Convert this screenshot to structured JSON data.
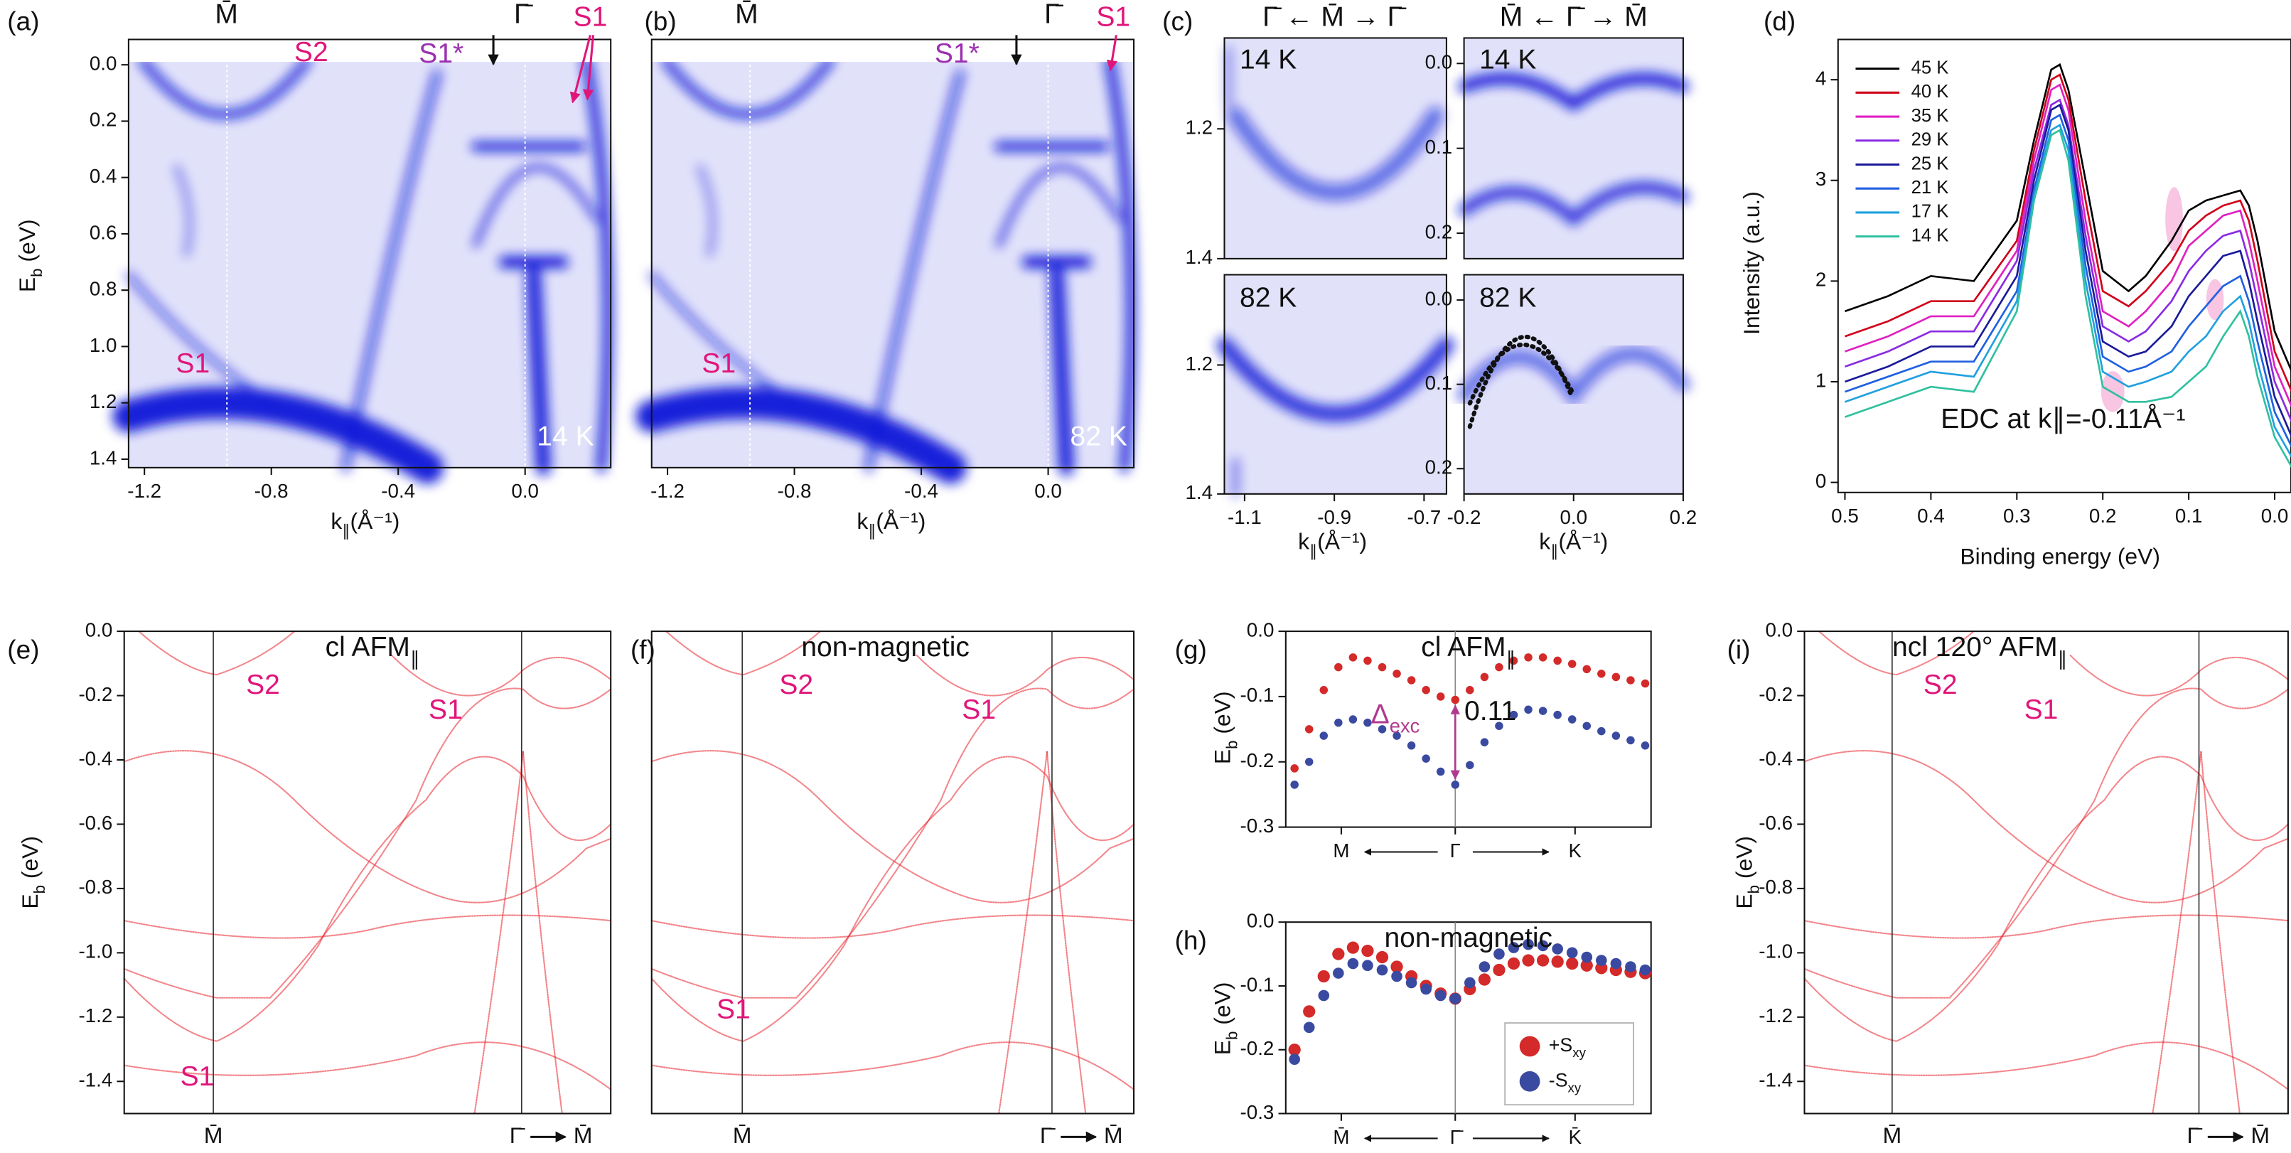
{
  "chart_data": [
    {
      "type": "image",
      "panel": "(a)",
      "color": "#0a14d8",
      "xlabel": {
        "text": "k",
        "sub": "∥",
        "tail": "(Å⁻¹)"
      },
      "ylabel": {
        "text": "E",
        "sub": "b",
        "tail": " (eV)"
      },
      "xlim": [
        -1.25,
        0.27
      ],
      "ylim": [
        1.43,
        -0.09
      ],
      "xticks": [
        -1.2,
        -0.8,
        -0.4,
        {
          "value": 0,
          "label": "0.0"
        }
      ],
      "yticks": [
        {
          "value": 0,
          "label": "0.0"
        },
        0.2,
        0.4,
        0.6,
        0.8,
        {
          "value": 1,
          "label": "1.0"
        },
        1.2,
        1.4
      ],
      "annotations": [
        {
          "text": "M̄",
          "color": "#111111"
        },
        {
          "text": "Γ̄",
          "color": "#111111"
        },
        {
          "text": "S2",
          "color": "#e0157a"
        },
        {
          "text": "S1*",
          "color": "#9b30b0"
        },
        {
          "text": "S1",
          "color": "#e0157a"
        },
        {
          "text": "S1",
          "color": "#e0157a"
        },
        {
          "text": "14 K",
          "color": "#ffffff"
        }
      ]
    },
    {
      "type": "image",
      "panel": "(b)",
      "color": "#0a14d8",
      "xlabel": {
        "text": "k",
        "sub": "∥",
        "tail": "(Å⁻¹)"
      },
      "xlim": [
        -1.25,
        0.27
      ],
      "ylim": [
        1.43,
        -0.09
      ],
      "xticks": [
        -1.2,
        -0.8,
        -0.4,
        {
          "value": 0,
          "label": "0.0"
        }
      ],
      "annotations": [
        {
          "text": "M̄",
          "color": "#111111"
        },
        {
          "text": "Γ̄",
          "color": "#111111"
        },
        {
          "text": "S1*",
          "color": "#9b30b0"
        },
        {
          "text": "S1",
          "color": "#e0157a"
        },
        {
          "text": "S1",
          "color": "#e0157a"
        },
        {
          "text": "82 K",
          "color": "#ffffff"
        }
      ]
    },
    {
      "type": "image",
      "panel": "(c)",
      "color": "#0a14d8",
      "xlim": [
        -1.145,
        -0.65
      ],
      "ylim": [
        1.4,
        1.06
      ],
      "yticks": [
        1.2,
        1.4
      ],
      "annotations": [
        {
          "text": "Γ̄ ← M̄ → Γ̄",
          "color": "#111111"
        },
        {
          "text": "14 K",
          "color": "#111111"
        }
      ]
    },
    {
      "type": "image",
      "color": "#0a14d8",
      "xlim": [
        -0.2,
        0.2
      ],
      "ylim": [
        0.23,
        -0.03
      ],
      "yticks": [
        {
          "value": 0,
          "label": "0.0"
        },
        0.1,
        0.2
      ],
      "annotations": [
        {
          "text": "M̄ ← Γ̄ → M̄",
          "color": "#111111"
        },
        {
          "text": "14 K",
          "color": "#111111"
        }
      ]
    },
    {
      "type": "image",
      "color": "#0a14d8",
      "xlabel": {
        "text": "k",
        "sub": "∥",
        "tail": "(Å⁻¹)"
      },
      "xlim": [
        -1.145,
        -0.65
      ],
      "ylim": [
        1.4,
        1.06
      ],
      "xticks": [
        -1.1,
        -0.9,
        -0.7
      ],
      "yticks": [
        1.2,
        1.4
      ],
      "annotations": [
        {
          "text": "82 K",
          "color": "#111111"
        }
      ]
    },
    {
      "type": "image",
      "color": "#0a14d8",
      "xlabel": {
        "text": "k",
        "sub": "∥",
        "tail": "(Å⁻¹)"
      },
      "xlim": [
        -0.2,
        0.2
      ],
      "ylim": [
        0.23,
        -0.03
      ],
      "xticks": [
        -0.2,
        {
          "value": 0,
          "label": "0.0"
        },
        0.2
      ],
      "yticks": [
        {
          "value": 0,
          "label": "0.0"
        },
        0.1,
        0.2
      ],
      "annotations": [
        {
          "text": "82 K",
          "color": "#111111"
        }
      ]
    },
    {
      "type": "line",
      "panel": "(d)",
      "xlabel": "Binding energy (eV)",
      "ylabel": "Intensity (a.u.)",
      "xlim": [
        0.508,
        -0.019
      ],
      "ylim": [
        -0.1,
        4.4
      ],
      "xticks": [
        0.5,
        0.4,
        0.3,
        0.2,
        0.1,
        {
          "value": 0,
          "label": "0.0"
        }
      ],
      "yticks": [
        0,
        1,
        2,
        3,
        4
      ],
      "annotations": [
        {
          "text": "EDC at k∥=-0.11Å⁻¹",
          "color": "#111111"
        }
      ],
      "x": [
        0.5,
        0.45,
        0.4,
        0.35,
        0.3,
        0.28,
        0.26,
        0.25,
        0.24,
        0.22,
        0.2,
        0.17,
        0.15,
        0.12,
        0.1,
        0.08,
        0.06,
        0.04,
        0.03,
        0.02,
        0,
        -0.02
      ],
      "series": [
        {
          "name": "45 K",
          "color": "#000000",
          "values": [
            1.7,
            1.85,
            2.05,
            2.0,
            2.6,
            3.4,
            4.1,
            4.15,
            3.9,
            3.0,
            2.1,
            1.9,
            2.05,
            2.4,
            2.7,
            2.8,
            2.85,
            2.9,
            2.75,
            2.4,
            1.5,
            1.1
          ]
        },
        {
          "name": "40 K",
          "color": "#d0021b",
          "values": [
            1.45,
            1.6,
            1.8,
            1.8,
            2.4,
            3.3,
            4.0,
            4.05,
            3.8,
            2.8,
            1.9,
            1.75,
            1.9,
            2.2,
            2.5,
            2.65,
            2.75,
            2.8,
            2.6,
            2.2,
            1.3,
            0.9
          ]
        },
        {
          "name": "35 K",
          "color": "#e020c0",
          "values": [
            1.3,
            1.45,
            1.65,
            1.65,
            2.3,
            3.2,
            3.9,
            3.95,
            3.7,
            2.6,
            1.7,
            1.55,
            1.7,
            2.0,
            2.35,
            2.5,
            2.65,
            2.7,
            2.4,
            2.0,
            1.15,
            0.75
          ]
        },
        {
          "name": "29 K",
          "color": "#8a2be2",
          "values": [
            1.15,
            1.3,
            1.5,
            1.5,
            2.2,
            3.1,
            3.75,
            3.8,
            3.55,
            2.45,
            1.55,
            1.4,
            1.5,
            1.8,
            2.1,
            2.3,
            2.45,
            2.5,
            2.2,
            1.8,
            1.0,
            0.6
          ]
        },
        {
          "name": "25 K",
          "color": "#1a1a9a",
          "values": [
            1.0,
            1.15,
            1.35,
            1.35,
            2.05,
            3.0,
            3.7,
            3.75,
            3.5,
            2.3,
            1.4,
            1.25,
            1.3,
            1.55,
            1.85,
            2.05,
            2.25,
            2.3,
            2.0,
            1.6,
            0.85,
            0.45
          ]
        },
        {
          "name": "21 K",
          "color": "#2060e0",
          "values": [
            0.9,
            1.05,
            1.2,
            1.2,
            1.9,
            2.9,
            3.6,
            3.65,
            3.4,
            2.15,
            1.25,
            1.1,
            1.15,
            1.3,
            1.55,
            1.75,
            1.95,
            2.05,
            1.8,
            1.4,
            0.7,
            0.35
          ]
        },
        {
          "name": "17 K",
          "color": "#20a0e0",
          "values": [
            0.8,
            0.95,
            1.1,
            1.05,
            1.8,
            2.85,
            3.5,
            3.55,
            3.3,
            2.0,
            1.1,
            0.95,
            1.0,
            1.1,
            1.3,
            1.45,
            1.7,
            1.85,
            1.6,
            1.2,
            0.55,
            0.25
          ]
        },
        {
          "name": "14 K",
          "color": "#30c0a0",
          "values": [
            0.65,
            0.8,
            0.95,
            0.9,
            1.7,
            2.8,
            3.45,
            3.5,
            3.2,
            1.85,
            0.95,
            0.8,
            0.8,
            0.85,
            1.0,
            1.15,
            1.45,
            1.7,
            1.45,
            1.05,
            0.45,
            0.15
          ]
        }
      ]
    },
    {
      "type": "band",
      "panel": "(e)",
      "color": "#e8202a",
      "title": {
        "text": "cl AFM",
        "sub": "∥"
      },
      "ylabel": {
        "text": "E",
        "sub": "b",
        "tail": " (eV)"
      },
      "ylim": [
        -1.5,
        0
      ],
      "yticks": [
        {
          "value": 0,
          "label": "0.0"
        },
        -0.2,
        -0.4,
        -0.6,
        -0.8,
        {
          "value": -1,
          "label": "-1.0"
        },
        -1.2,
        -1.4
      ],
      "x_labels": [
        "M̄",
        "Γ̄",
        "M̄"
      ],
      "annotations": [
        {
          "text": "S2",
          "color": "#e0157a"
        },
        {
          "text": "S1",
          "color": "#e0157a"
        },
        {
          "text": "S1",
          "color": "#e0157a"
        }
      ]
    },
    {
      "type": "band",
      "panel": "(f)",
      "color": "#e8202a",
      "title": "non-magnetic",
      "ylim": [
        -1.5,
        0
      ],
      "x_labels": [
        "M̄",
        "Γ̄",
        "M̄"
      ],
      "annotations": [
        {
          "text": "S2",
          "color": "#e0157a"
        },
        {
          "text": "S1",
          "color": "#e0157a"
        },
        {
          "text": "S1",
          "color": "#e0157a"
        }
      ]
    },
    {
      "type": "scatter",
      "panel": "(g)",
      "title": {
        "text": "cl AFM",
        "sub": "∥"
      },
      "ylabel": {
        "text": "E",
        "sub": "b",
        "tail": " (eV)"
      },
      "xlim": [
        -1.16,
        1.34
      ],
      "ylim": [
        -0.3,
        0
      ],
      "xticks": [
        {
          "value": -0.78,
          "label": "M"
        },
        {
          "value": 0,
          "label": "Γ"
        },
        {
          "value": 0.82,
          "label": "K"
        }
      ],
      "yticks": [
        {
          "value": 0,
          "label": "0.0"
        },
        -0.1,
        -0.2,
        -0.3
      ],
      "annotations": [
        {
          "text": "Δ",
          "sub": "exc",
          "color": "#b0398f"
        },
        {
          "text": "0.11",
          "color": "#111111"
        }
      ],
      "x": [
        -1.1,
        -1,
        -0.9,
        -0.8,
        -0.7,
        -0.6,
        -0.5,
        -0.4,
        -0.3,
        -0.2,
        -0.1,
        0,
        0.1,
        0.2,
        0.3,
        0.4,
        0.5,
        0.6,
        0.7,
        0.8,
        0.9,
        1,
        1.1,
        1.2,
        1.3
      ],
      "series": [
        {
          "color": "#d42a2a",
          "marker_size": 2.8,
          "values": [
            -0.21,
            -0.15,
            -0.09,
            -0.055,
            -0.04,
            -0.045,
            -0.055,
            -0.065,
            -0.075,
            -0.09,
            -0.1,
            -0.105,
            -0.09,
            -0.07,
            -0.055,
            -0.045,
            -0.04,
            -0.04,
            -0.045,
            -0.05,
            -0.058,
            -0.065,
            -0.07,
            -0.075,
            -0.08
          ]
        },
        {
          "color": "#3a4aa0",
          "marker_size": 2.8,
          "values": [
            -0.235,
            -0.2,
            -0.16,
            -0.14,
            -0.135,
            -0.14,
            -0.15,
            -0.16,
            -0.175,
            -0.195,
            -0.215,
            -0.235,
            -0.205,
            -0.17,
            -0.145,
            -0.128,
            -0.12,
            -0.122,
            -0.128,
            -0.135,
            -0.145,
            -0.153,
            -0.16,
            -0.167,
            -0.175
          ]
        }
      ]
    },
    {
      "type": "scatter",
      "panel": "(h)",
      "title": "non-magnetic",
      "ylabel": {
        "text": "E",
        "sub": "b",
        "tail": " (eV)"
      },
      "xlim": [
        -1.16,
        1.34
      ],
      "ylim": [
        -0.3,
        0
      ],
      "xticks": [
        {
          "value": -0.78,
          "label": "M̄"
        },
        {
          "value": 0,
          "label": "Γ̄"
        },
        {
          "value": 0.82,
          "label": "K̄"
        }
      ],
      "yticks": [
        {
          "value": 0,
          "label": "0.0"
        },
        -0.1,
        -0.2,
        -0.3
      ],
      "legend": "lower right",
      "x": [
        -1.1,
        -1,
        -0.9,
        -0.8,
        -0.7,
        -0.6,
        -0.5,
        -0.4,
        -0.3,
        -0.2,
        -0.1,
        0,
        0.1,
        0.2,
        0.3,
        0.4,
        0.5,
        0.6,
        0.7,
        0.8,
        0.9,
        1,
        1.1,
        1.2,
        1.3
      ],
      "series": [
        {
          "name": {
            "text": "+S",
            "sub": "xy"
          },
          "color": "#d42a2a",
          "marker_size": 4.2,
          "values": [
            -0.2,
            -0.14,
            -0.085,
            -0.05,
            -0.04,
            -0.045,
            -0.055,
            -0.07,
            -0.085,
            -0.1,
            -0.112,
            -0.12,
            -0.105,
            -0.09,
            -0.075,
            -0.065,
            -0.06,
            -0.06,
            -0.062,
            -0.065,
            -0.068,
            -0.072,
            -0.075,
            -0.078,
            -0.08
          ]
        },
        {
          "name": {
            "text": "-S",
            "sub": "xy"
          },
          "color": "#3a4aa0",
          "marker_size": 3.8,
          "values": [
            -0.215,
            -0.165,
            -0.115,
            -0.08,
            -0.065,
            -0.068,
            -0.075,
            -0.085,
            -0.095,
            -0.105,
            -0.115,
            -0.12,
            -0.095,
            -0.07,
            -0.05,
            -0.04,
            -0.035,
            -0.037,
            -0.042,
            -0.048,
            -0.055,
            -0.06,
            -0.065,
            -0.07,
            -0.075
          ]
        }
      ]
    },
    {
      "type": "band",
      "panel": "(i)",
      "color": "#e8202a",
      "title": {
        "text": "ncl 120° AFM",
        "sub": "∥"
      },
      "ylabel": {
        "text": "E",
        "sub": "b",
        "tail": " (eV)"
      },
      "ylim": [
        -1.5,
        0
      ],
      "yticks": [
        {
          "value": 0,
          "label": "0.0"
        },
        -0.2,
        -0.4,
        -0.6,
        -0.8,
        {
          "value": -1,
          "label": "-1.0"
        },
        -1.2,
        -1.4
      ],
      "x_labels": [
        "M̄",
        "Γ̄",
        "M̄"
      ],
      "annotations": [
        {
          "text": "S2",
          "color": "#e0157a"
        },
        {
          "text": "S1",
          "color": "#e0157a"
        }
      ]
    }
  ]
}
